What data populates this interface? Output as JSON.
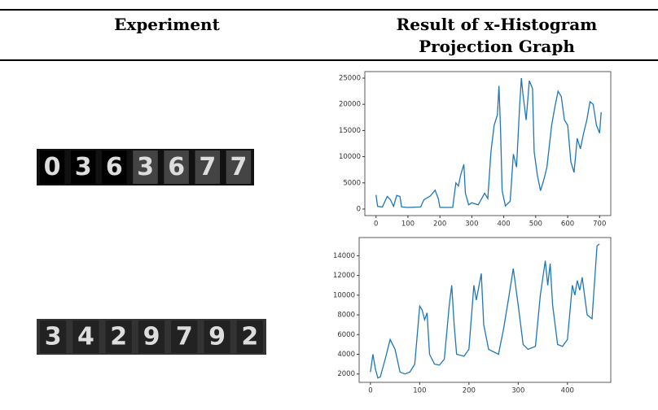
{
  "table": {
    "headers": [
      "Experiment",
      "Result of x-Histogram",
      "Projection Graph"
    ],
    "rows": [
      {
        "experiment_digits": [
          "0",
          "3",
          "6",
          "3",
          "6",
          "7",
          "7"
        ]
      },
      {
        "experiment_digits": [
          "3",
          "4",
          "2",
          "9",
          "7",
          "9",
          "2"
        ]
      }
    ]
  },
  "chart_data": [
    {
      "type": "line",
      "x": [
        0,
        5,
        20,
        35,
        45,
        55,
        65,
        75,
        80,
        100,
        140,
        150,
        170,
        185,
        195,
        200,
        240,
        250,
        258,
        265,
        275,
        280,
        290,
        300,
        320,
        340,
        350,
        360,
        370,
        380,
        385,
        390,
        395,
        405,
        420,
        430,
        440,
        450,
        455,
        460,
        470,
        480,
        490,
        495,
        505,
        515,
        525,
        535,
        550,
        560,
        570,
        580,
        590,
        600,
        610,
        620,
        630,
        640,
        650,
        660,
        670,
        680,
        690,
        700,
        705
      ],
      "series": [
        {
          "color": "#1f77b4",
          "values": [
            2700,
            500,
            400,
            2400,
            1800,
            500,
            2600,
            2400,
            400,
            300,
            400,
            1800,
            2500,
            3600,
            2000,
            300,
            300,
            5000,
            4400,
            6500,
            8500,
            3000,
            800,
            1200,
            800,
            3000,
            2000,
            11000,
            16000,
            18000,
            23500,
            15000,
            3500,
            600,
            1500,
            10500,
            8000,
            20000,
            25000,
            22000,
            17000,
            24500,
            23000,
            11000,
            6500,
            3500,
            5500,
            8000,
            16000,
            19500,
            22500,
            21500,
            17000,
            16000,
            9000,
            7000,
            13500,
            11500,
            14500,
            17000,
            20500,
            20000,
            16000,
            14500,
            18500
          ]
        }
      ],
      "xlim": [
        -35,
        735
      ],
      "ylim": [
        -1250,
        26250
      ],
      "xticks": [
        0,
        100,
        200,
        300,
        400,
        500,
        600,
        700
      ],
      "yticks": [
        0,
        5000,
        10000,
        15000,
        20000,
        25000
      ]
    },
    {
      "type": "line",
      "x": [
        0,
        5,
        10,
        15,
        20,
        30,
        40,
        50,
        60,
        70,
        80,
        90,
        100,
        105,
        110,
        115,
        120,
        130,
        140,
        150,
        160,
        165,
        170,
        175,
        190,
        200,
        210,
        215,
        225,
        230,
        240,
        260,
        270,
        280,
        290,
        300,
        310,
        320,
        335,
        345,
        355,
        360,
        365,
        370,
        380,
        390,
        400,
        410,
        415,
        420,
        425,
        430,
        440,
        450,
        460,
        465
      ],
      "series": [
        {
          "color": "#1f77b4",
          "values": [
            2200,
            4000,
            2500,
            1600,
            1700,
            3500,
            5500,
            4500,
            2200,
            2000,
            2200,
            3000,
            8900,
            8500,
            7500,
            8200,
            4000,
            3000,
            2900,
            3500,
            9000,
            11000,
            7000,
            4000,
            3800,
            4500,
            11000,
            9500,
            12200,
            7000,
            4500,
            4000,
            6500,
            9500,
            12700,
            9000,
            5000,
            4500,
            4800,
            10000,
            13500,
            11000,
            13200,
            9000,
            5000,
            4800,
            5500,
            11000,
            10000,
            11500,
            10500,
            11800,
            8000,
            7600,
            15000,
            15200
          ]
        }
      ],
      "xlim": [
        -23,
        488
      ],
      "ylim": [
        1150,
        15850
      ],
      "xticks": [
        0,
        100,
        200,
        300,
        400
      ],
      "yticks": [
        2000,
        4000,
        6000,
        8000,
        10000,
        12000,
        14000
      ]
    }
  ]
}
